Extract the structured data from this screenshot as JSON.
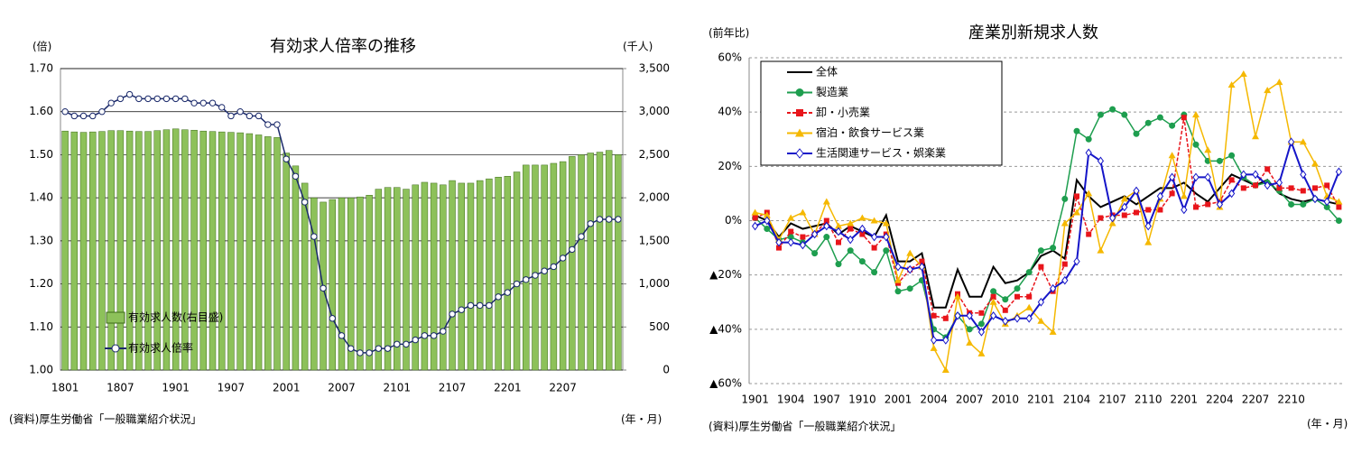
{
  "chart_data": [
    {
      "type": "bar_line",
      "title": "有効求人倍率の推移",
      "ylabel": "(倍)",
      "y2label": "(千人)",
      "xlabel": "(年・月)",
      "source": "(資料)厚生労働省「一般職業紹介状況」",
      "categories": [
        "1801",
        null,
        null,
        null,
        null,
        null,
        "1807",
        null,
        null,
        null,
        null,
        null,
        "1901",
        null,
        null,
        null,
        null,
        null,
        "1907",
        null,
        null,
        null,
        null,
        null,
        "2001",
        null,
        null,
        null,
        null,
        null,
        "2007",
        null,
        null,
        null,
        null,
        null,
        "2101",
        null,
        null,
        null,
        null,
        null,
        "2107",
        null,
        null,
        null,
        null,
        null,
        "2201",
        null,
        null,
        null,
        null,
        null,
        "2207",
        null,
        null,
        null,
        null,
        null,
        null
      ],
      "ylim": [
        1.0,
        1.7
      ],
      "yticks": [
        {
          "value": 1.0,
          "label": "1.00"
        },
        {
          "value": 1.1,
          "label": "1.10"
        },
        {
          "value": 1.2,
          "label": "1.20"
        },
        {
          "value": 1.3,
          "label": "1.30"
        },
        {
          "value": 1.4,
          "label": "1.40"
        },
        {
          "value": 1.5,
          "label": "1.50"
        },
        {
          "value": 1.6,
          "label": "1.60"
        },
        {
          "value": 1.7,
          "label": "1.70"
        }
      ],
      "y2lim": [
        0,
        3500
      ],
      "y2ticks": [
        0,
        500,
        {
          "value": 1000,
          "label": "1,000"
        },
        {
          "value": 1500,
          "label": "1,500"
        },
        {
          "value": 2000,
          "label": "2,000"
        },
        {
          "value": 2500,
          "label": "2,500"
        },
        {
          "value": 3000,
          "label": "3,000"
        },
        {
          "value": 3500,
          "label": "3,500"
        }
      ],
      "grid": true,
      "series": [
        {
          "name": "有効求人数(右目盛)",
          "type": "bar",
          "axis": "y2",
          "color": "#8dc15a",
          "values": [
            2775,
            2765,
            2760,
            2765,
            2770,
            2780,
            2780,
            2775,
            2770,
            2770,
            2780,
            2790,
            2800,
            2790,
            2785,
            2775,
            2770,
            2765,
            2760,
            2755,
            2745,
            2730,
            2710,
            2700,
            2520,
            2370,
            2170,
            2000,
            1950,
            1980,
            2000,
            2000,
            2010,
            2030,
            2100,
            2120,
            2120,
            2100,
            2150,
            2180,
            2170,
            2150,
            2200,
            2170,
            2170,
            2200,
            2220,
            2240,
            2250,
            2300,
            2380,
            2380,
            2380,
            2400,
            2420,
            2480,
            2500,
            2520,
            2530,
            2550,
            2500
          ]
        },
        {
          "name": "有効求人倍率",
          "type": "line",
          "color": "#1b2a6b",
          "marker": "circle",
          "values": [
            1.6,
            1.59,
            1.59,
            1.59,
            1.6,
            1.62,
            1.63,
            1.64,
            1.63,
            1.63,
            1.63,
            1.63,
            1.63,
            1.63,
            1.62,
            1.62,
            1.62,
            1.61,
            1.59,
            1.6,
            1.59,
            1.59,
            1.57,
            1.57,
            1.49,
            1.45,
            1.39,
            1.31,
            1.19,
            1.12,
            1.08,
            1.05,
            1.04,
            1.04,
            1.05,
            1.05,
            1.06,
            1.06,
            1.07,
            1.08,
            1.08,
            1.09,
            1.13,
            1.14,
            1.15,
            1.15,
            1.15,
            1.17,
            1.18,
            1.2,
            1.21,
            1.22,
            1.23,
            1.24,
            1.26,
            1.28,
            1.31,
            1.34,
            1.35,
            1.35,
            1.35
          ]
        }
      ]
    },
    {
      "type": "line",
      "title": "産業別新規求人数",
      "ylabel": "(前年比)",
      "xlabel": "(年・月)",
      "source": "(資料)厚生労働省「一般職業紹介状況」",
      "categories": [
        "1901",
        null,
        null,
        "1904",
        null,
        null,
        "1907",
        null,
        null,
        "1910",
        null,
        null,
        "2001",
        null,
        null,
        "2004",
        null,
        null,
        "2007",
        null,
        null,
        "2010",
        null,
        null,
        "2101",
        null,
        null,
        "2104",
        null,
        null,
        "2107",
        null,
        null,
        "2110",
        null,
        null,
        "2201",
        null,
        null,
        "2204",
        null,
        null,
        "2207",
        null,
        null,
        "2210",
        null,
        null,
        null,
        null
      ],
      "ylim": [
        -60,
        60
      ],
      "yticks": [
        {
          "value": -60,
          "label": "▲60%"
        },
        {
          "value": -40,
          "label": "▲40%"
        },
        {
          "value": -20,
          "label": "▲20%"
        },
        {
          "value": 0,
          "label": "0%"
        },
        {
          "value": 20,
          "label": "20%"
        },
        {
          "value": 40,
          "label": "40%"
        },
        {
          "value": 60,
          "label": "60%"
        }
      ],
      "grid": true,
      "series": [
        {
          "name": "全体",
          "color": "#000000",
          "marker": "none",
          "values": [
            2,
            0,
            -6,
            -1,
            -3,
            -2,
            -1,
            -5,
            -2,
            -4,
            -6,
            2,
            -15,
            -15,
            -12,
            -32,
            -32,
            -18,
            -28,
            -28,
            -17,
            -23,
            -22,
            -19,
            -13,
            -11,
            -14,
            15,
            9,
            5,
            7,
            9,
            6,
            9,
            12,
            12,
            14,
            10,
            7,
            12,
            17,
            15,
            13,
            15,
            10,
            8,
            7,
            8,
            7,
            6
          ]
        },
        {
          "name": "製造業",
          "color": "#1e9e4f",
          "marker": "circle",
          "values": [
            1,
            -3,
            -7,
            -6,
            -8,
            -12,
            -6,
            -16,
            -11,
            -15,
            -19,
            -11,
            -26,
            -25,
            -22,
            -40,
            -43,
            -35,
            -40,
            -38,
            -26,
            -29,
            -25,
            -19,
            -11,
            -10,
            8,
            33,
            30,
            39,
            41,
            39,
            32,
            36,
            38,
            35,
            39,
            28,
            22,
            22,
            24,
            16,
            13,
            14,
            11,
            6,
            6,
            8,
            5,
            0
          ]
        },
        {
          "name": "卸・小売業",
          "color": "#e8151b",
          "marker": "square",
          "dash": true,
          "values": [
            1,
            3,
            -10,
            -4,
            -6,
            -5,
            0,
            -8,
            -3,
            -5,
            -10,
            -5,
            -23,
            -18,
            -15,
            -35,
            -36,
            -27,
            -34,
            -34,
            -28,
            -33,
            -28,
            -28,
            -17,
            -26,
            -16,
            9,
            -5,
            1,
            2,
            2,
            3,
            4,
            4,
            10,
            38,
            5,
            6,
            7,
            15,
            12,
            13,
            19,
            12,
            12,
            11,
            12,
            13,
            5
          ]
        },
        {
          "name": "宿泊・飲食サービス業",
          "color": "#f5b800",
          "marker": "triangle",
          "values": [
            3,
            2,
            -7,
            1,
            3,
            -5,
            7,
            -2,
            -1,
            1,
            0,
            -1,
            -22,
            -12,
            -17,
            -47,
            -55,
            -28,
            -45,
            -49,
            -30,
            -38,
            -35,
            -32,
            -37,
            -41,
            -1,
            3,
            10,
            -11,
            -1,
            8,
            11,
            -8,
            8,
            24,
            9,
            39,
            26,
            5,
            50,
            54,
            31,
            48,
            51,
            29,
            29,
            21,
            9,
            7
          ]
        },
        {
          "name": "生活関連サービス・娯楽業",
          "color": "#1515c8",
          "marker": "diamond",
          "values": [
            -2,
            0,
            -8,
            -8,
            -9,
            -5,
            -2,
            -4,
            -7,
            -3,
            -6,
            -6,
            -17,
            -18,
            -17,
            -44,
            -44,
            -35,
            -35,
            -41,
            -35,
            -37,
            -36,
            -36,
            -30,
            -25,
            -22,
            -15,
            25,
            22,
            1,
            5,
            11,
            -2,
            9,
            16,
            4,
            16,
            16,
            6,
            10,
            17,
            17,
            13,
            14,
            29,
            17,
            8,
            7,
            18
          ]
        }
      ]
    }
  ]
}
